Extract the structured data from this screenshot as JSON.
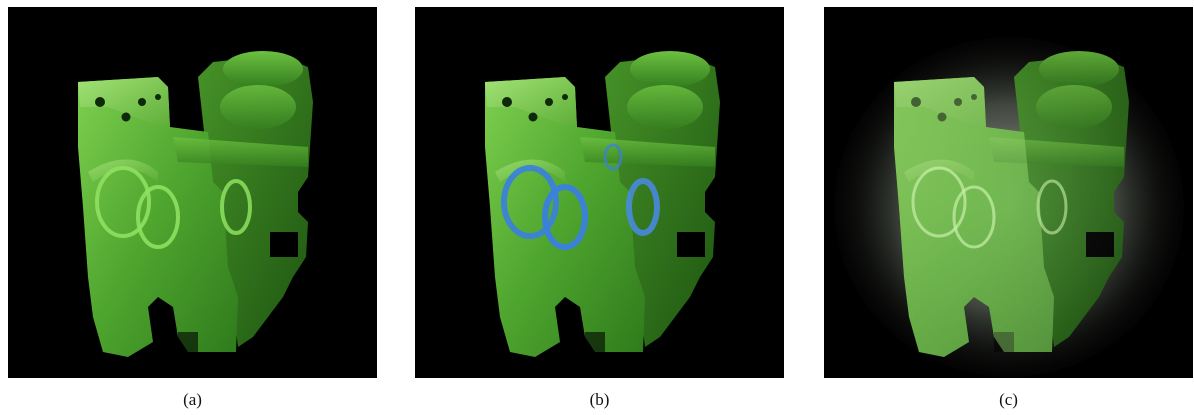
{
  "figure": {
    "panels": [
      {
        "id": "a",
        "caption": "(a)"
      },
      {
        "id": "b",
        "caption": "(b)"
      },
      {
        "id": "c",
        "caption": "(c)"
      }
    ]
  },
  "colors": {
    "background": "#000000",
    "body_green": "#5fbf3a",
    "body_green_dark": "#2f7a1c",
    "body_green_light": "#9be070",
    "ring_blue": "#3a7fe0",
    "glow_white": "#e8f0e0"
  }
}
